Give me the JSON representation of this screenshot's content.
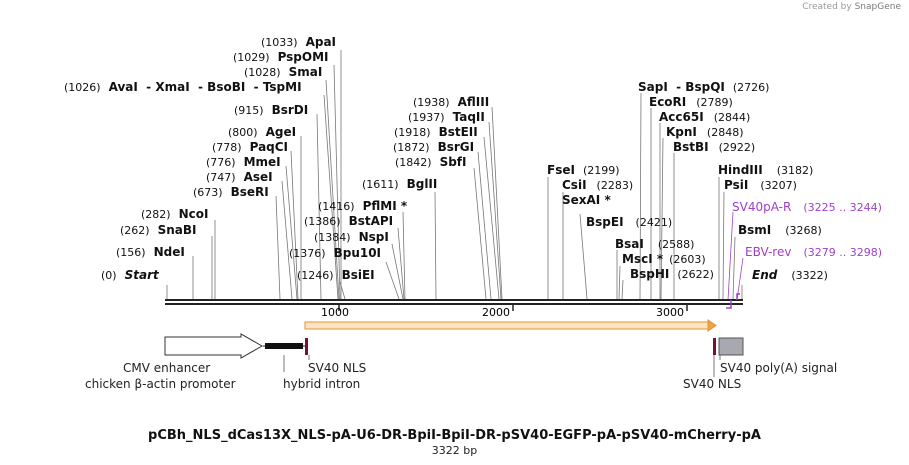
{
  "credit": {
    "prefix": "Created by",
    "brand": "SnapGene"
  },
  "title": "pCBh_NLS_dCas13X_NLS-pA-U6-DR-BpiI-BpiI-DR-pSV40-EGFP-pA-pSV40-mCherry-pA",
  "length_label": "3322 bp",
  "total_bp": 3322,
  "ruler": [
    "1000",
    "2000",
    "3000"
  ],
  "sites": [
    {
      "pos": "(0)",
      "name": "Start"
    },
    {
      "pos": "(156)",
      "name": "NdeI"
    },
    {
      "pos": "(262)",
      "name": "SnaBI"
    },
    {
      "pos": "(282)",
      "name": "NcoI"
    },
    {
      "pos": "(673)",
      "name": "BseRI"
    },
    {
      "pos": "(747)",
      "name": "AseI"
    },
    {
      "pos": "(776)",
      "name": "MmeI"
    },
    {
      "pos": "(778)",
      "name": "PaqCI"
    },
    {
      "pos": "(800)",
      "name": "AgeI"
    },
    {
      "pos": "(915)",
      "name": "BsrDI"
    },
    {
      "pos": "(1026)",
      "name": "AvaI  - XmaI  - BsoBI  - TspMI"
    },
    {
      "pos": "(1028)",
      "name": "SmaI"
    },
    {
      "pos": "(1029)",
      "name": "PspOMI"
    },
    {
      "pos": "(1033)",
      "name": "ApaI"
    },
    {
      "pos": "(1246)",
      "name": "BsiEI"
    },
    {
      "pos": "(1376)",
      "name": "Bpu10I"
    },
    {
      "pos": "(1384)",
      "name": "NspI"
    },
    {
      "pos": "(1386)",
      "name": "BstAPI"
    },
    {
      "pos": "(1416)",
      "name": "PflMI *"
    },
    {
      "pos": "(1611)",
      "name": "BglII"
    },
    {
      "pos": "(1842)",
      "name": "SbfI"
    },
    {
      "pos": "(1872)",
      "name": "BsrGI"
    },
    {
      "pos": "(1918)",
      "name": "BstEII"
    },
    {
      "pos": "(1937)",
      "name": "TaqII"
    },
    {
      "pos": "(1938)",
      "name": "AflIII"
    },
    {
      "pos": "(2199)",
      "name": "FseI"
    },
    {
      "pos": "(2283)",
      "name": "CsiI"
    },
    {
      "pos": "",
      "name": "SexAI *"
    },
    {
      "pos": "(2421)",
      "name": "BspEI"
    },
    {
      "pos": "(2588)",
      "name": "BsaI"
    },
    {
      "pos": "(2603)",
      "name": "MscI *"
    },
    {
      "pos": "(2622)",
      "name": "BspHI"
    },
    {
      "pos": "(2726)",
      "name": "SapI  - BspQI"
    },
    {
      "pos": "(2789)",
      "name": "EcoRI"
    },
    {
      "pos": "(2844)",
      "name": "Acc65I"
    },
    {
      "pos": "(2848)",
      "name": "KpnI"
    },
    {
      "pos": "(2922)",
      "name": "BstBI"
    },
    {
      "pos": "(3182)",
      "name": "HindIII"
    },
    {
      "pos": "(3207)",
      "name": "PsiI"
    },
    {
      "pos": "(3268)",
      "name": "BsmI"
    },
    {
      "pos": "(3322)",
      "name": "End"
    }
  ],
  "primers": [
    {
      "name": "SV40pA-R",
      "range": "(3225 .. 3244)",
      "color": "#a040c8"
    },
    {
      "name": "EBV-rev",
      "range": "(3279 .. 3298)",
      "color": "#a040c8"
    }
  ],
  "features": [
    {
      "label": "CMV enhancer"
    },
    {
      "label": "chicken β-actin promoter"
    },
    {
      "label": "hybrid intron"
    },
    {
      "label": "SV40 NLS"
    },
    {
      "label": "SV40 NLS"
    },
    {
      "label": "SV40 poly(A) signal"
    }
  ],
  "colors": {
    "orf": "#f2a14a",
    "primer": "#a040c8",
    "nls": "#7a1030",
    "polya": "#a8a8b0",
    "backbone": "#222222"
  }
}
